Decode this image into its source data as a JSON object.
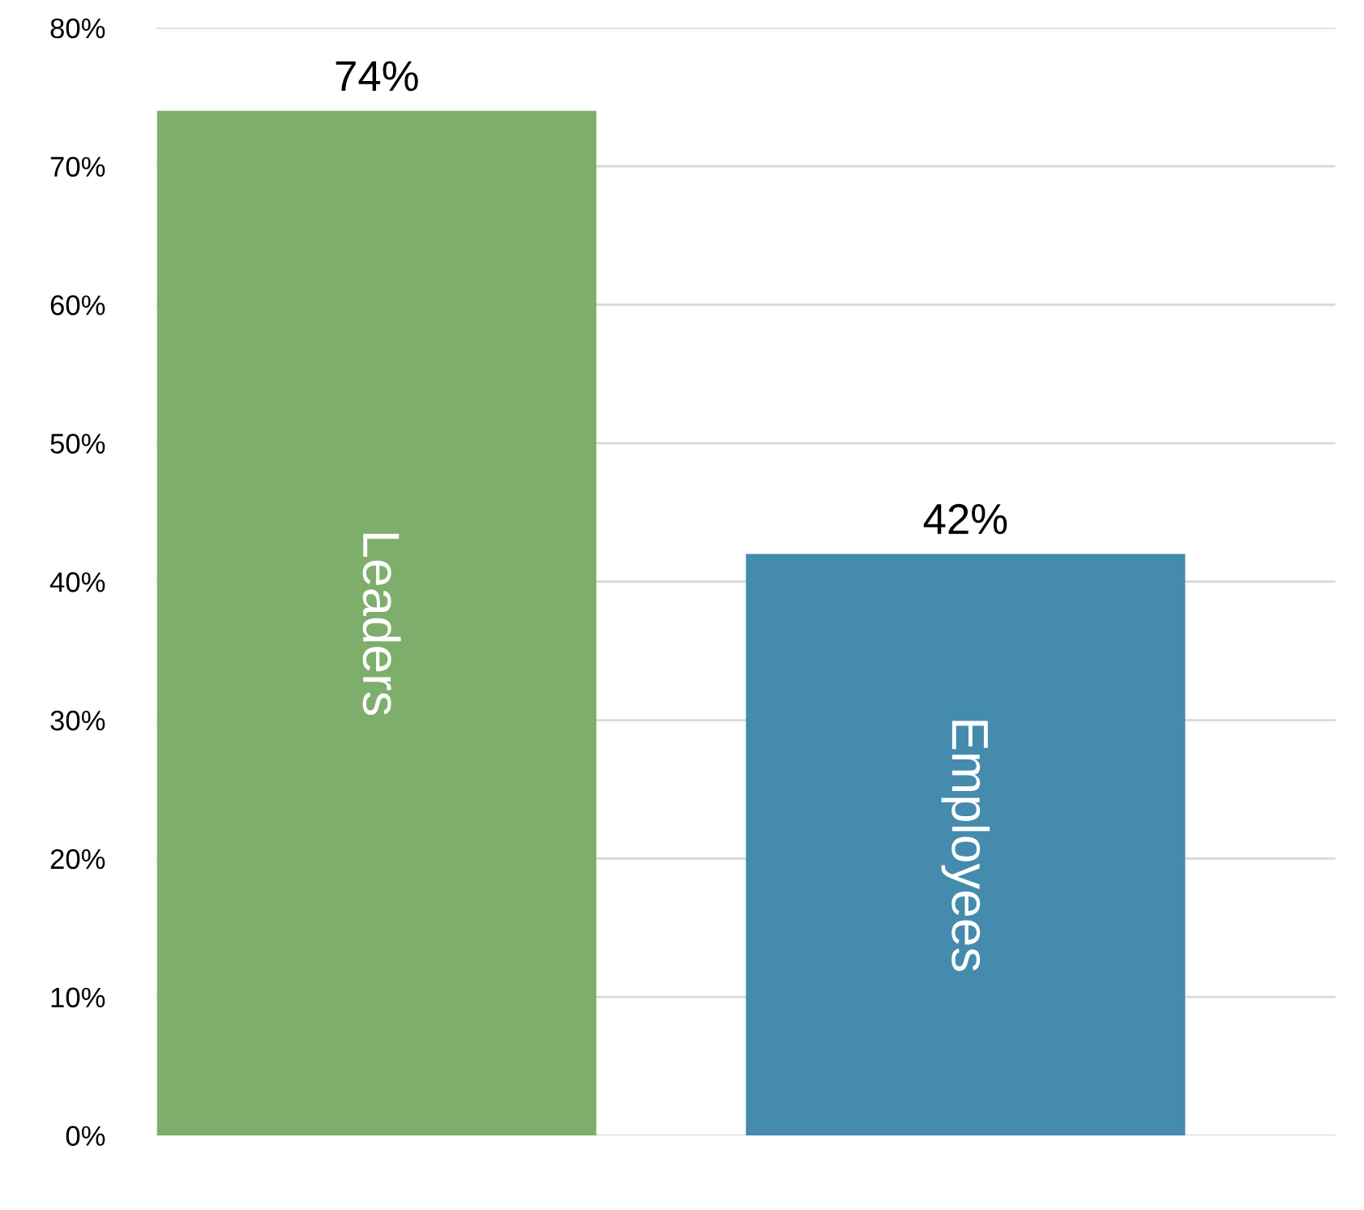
{
  "chart_data": {
    "type": "bar",
    "categories": [
      "Leaders",
      "Employees"
    ],
    "values": [
      74,
      42
    ],
    "colors": [
      "#7eae6b",
      "#448bae"
    ],
    "value_labels": [
      "74%",
      "42%"
    ],
    "ylim": [
      0,
      80
    ],
    "yticks": [
      {
        "value": 0,
        "label": "0%"
      },
      {
        "value": 10,
        "label": "10%"
      },
      {
        "value": 20,
        "label": "20%"
      },
      {
        "value": 30,
        "label": "30%"
      },
      {
        "value": 40,
        "label": "40%"
      },
      {
        "value": 50,
        "label": "50%"
      },
      {
        "value": 60,
        "label": "60%"
      },
      {
        "value": 70,
        "label": "70%"
      },
      {
        "value": 80,
        "label": "80%"
      }
    ],
    "grid": "y",
    "legend": false
  }
}
